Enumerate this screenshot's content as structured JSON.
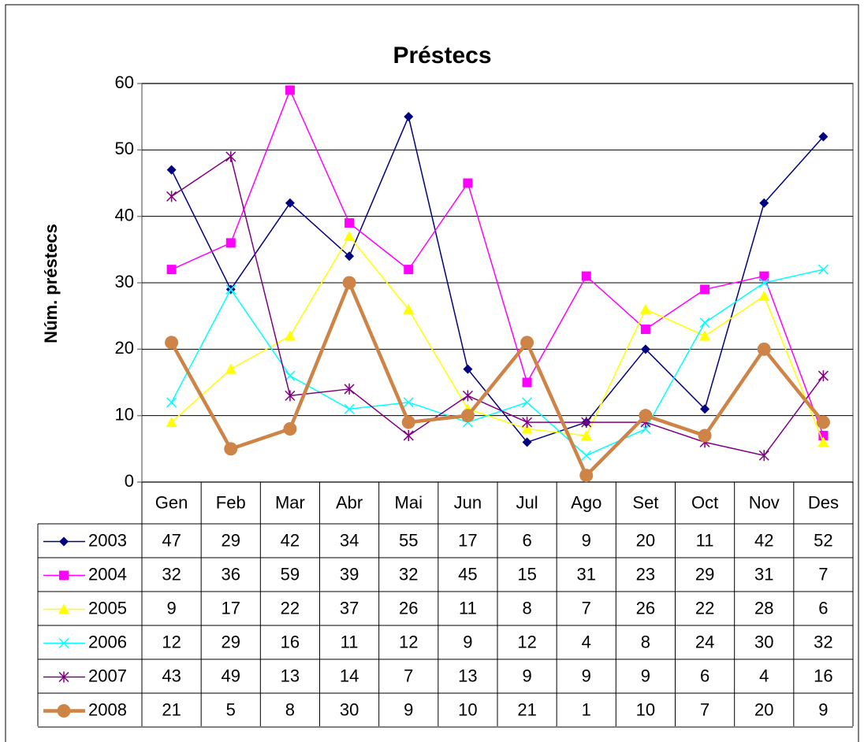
{
  "chart_data": {
    "type": "line",
    "title": "Préstecs",
    "y_label": "Núm. préstecs",
    "categories": [
      "Gen",
      "Feb",
      "Mar",
      "Abr",
      "Mai",
      "Jun",
      "Jul",
      "Ago",
      "Set",
      "Oct",
      "Nov",
      "Des"
    ],
    "ylim": [
      0,
      60
    ],
    "yticks": [
      0,
      10,
      20,
      30,
      40,
      50,
      60
    ],
    "grid": true,
    "data_table": true,
    "series": [
      {
        "name": "2003",
        "color": "#000080",
        "marker": "diamond",
        "values": [
          47,
          29,
          42,
          34,
          55,
          17,
          6,
          9,
          20,
          11,
          42,
          52
        ]
      },
      {
        "name": "2004",
        "color": "#ff00ff",
        "marker": "square",
        "values": [
          32,
          36,
          59,
          39,
          32,
          45,
          15,
          31,
          23,
          29,
          31,
          7
        ]
      },
      {
        "name": "2005",
        "color": "#ffff00",
        "marker": "triangle",
        "values": [
          9,
          17,
          22,
          37,
          26,
          11,
          8,
          7,
          26,
          22,
          28,
          6
        ]
      },
      {
        "name": "2006",
        "color": "#00ffff",
        "marker": "x",
        "values": [
          12,
          29,
          16,
          11,
          12,
          9,
          12,
          4,
          8,
          24,
          30,
          32
        ]
      },
      {
        "name": "2007",
        "color": "#800080",
        "marker": "star",
        "values": [
          43,
          49,
          13,
          14,
          7,
          13,
          9,
          9,
          9,
          6,
          4,
          16
        ]
      },
      {
        "name": "2008",
        "color": "#cd8446",
        "marker": "circle",
        "values": [
          21,
          5,
          8,
          30,
          9,
          10,
          21,
          1,
          10,
          7,
          20,
          9
        ]
      }
    ]
  }
}
